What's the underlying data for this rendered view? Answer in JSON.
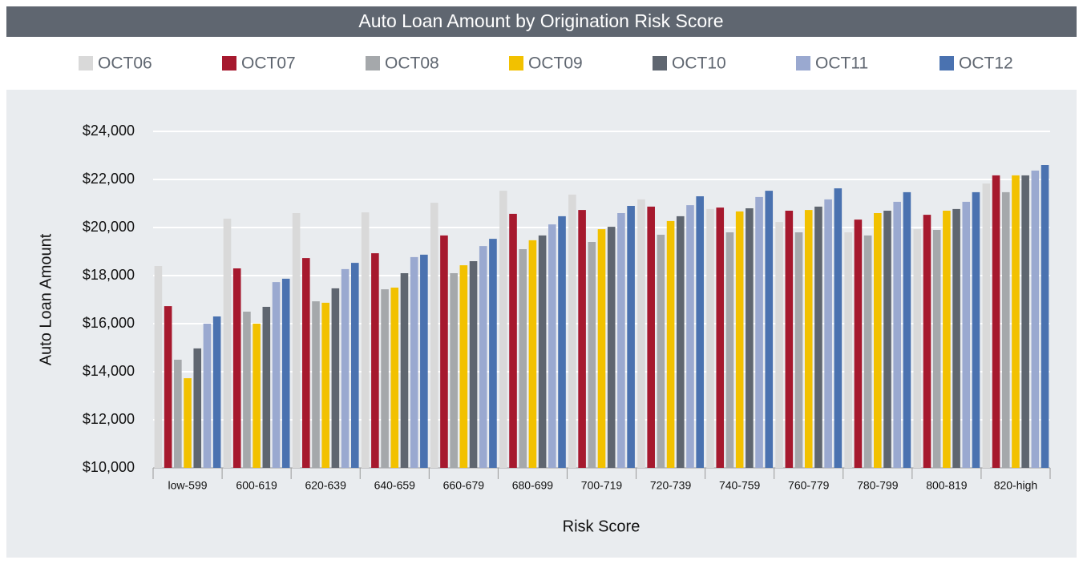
{
  "chart_data": {
    "type": "bar",
    "title": "Auto Loan Amount by Origination Risk Score",
    "x_label": "Risk Score",
    "y_label": "Auto Loan Amount",
    "categories": [
      "low-599",
      "600-619",
      "620-639",
      "640-659",
      "660-679",
      "680-699",
      "700-719",
      "720-739",
      "740-759",
      "760-779",
      "780-799",
      "800-819",
      "820-high"
    ],
    "series": [
      {
        "name": "OCT06",
        "color": "#d9d9d9",
        "values": [
          18400,
          20370,
          20600,
          20630,
          21030,
          21530,
          21370,
          21170,
          20770,
          20230,
          19800,
          19930,
          21830
        ]
      },
      {
        "name": "OCT07",
        "color": "#a6192e",
        "values": [
          16730,
          18300,
          18730,
          18930,
          19670,
          20570,
          20730,
          20870,
          20830,
          20700,
          20330,
          20530,
          22170
        ]
      },
      {
        "name": "OCT08",
        "color": "#a5a8ab",
        "values": [
          14500,
          16500,
          16930,
          17430,
          18100,
          19100,
          19400,
          19700,
          19800,
          19800,
          19670,
          19900,
          21470
        ]
      },
      {
        "name": "OCT09",
        "color": "#f2c100",
        "values": [
          13730,
          16000,
          16870,
          17500,
          18430,
          19470,
          19930,
          20270,
          20670,
          20730,
          20600,
          20700,
          22170
        ]
      },
      {
        "name": "OCT10",
        "color": "#5f6670",
        "values": [
          14970,
          16700,
          17470,
          18100,
          18600,
          19670,
          20030,
          20470,
          20800,
          20870,
          20700,
          20770,
          22170
        ]
      },
      {
        "name": "OCT11",
        "color": "#9aa9d0",
        "values": [
          16000,
          17730,
          18270,
          18770,
          19230,
          20130,
          20600,
          20930,
          21270,
          21170,
          21070,
          21070,
          22370
        ]
      },
      {
        "name": "OCT12",
        "color": "#4a72b0",
        "values": [
          16300,
          17870,
          18530,
          18870,
          19530,
          20470,
          20900,
          21300,
          21530,
          21630,
          21470,
          21470,
          22600
        ]
      }
    ],
    "ylim": [
      10000,
      24000
    ],
    "yticks": [
      {
        "value": 10000,
        "label": "$10,000"
      },
      {
        "value": 12000,
        "label": "$12,000"
      },
      {
        "value": 14000,
        "label": "$14,000"
      },
      {
        "value": 16000,
        "label": "$16,000"
      },
      {
        "value": 18000,
        "label": "$18,000"
      },
      {
        "value": 20000,
        "label": "$20,000"
      },
      {
        "value": 22000,
        "label": "$22,000"
      },
      {
        "value": 24000,
        "label": "$24,000"
      }
    ],
    "grid": true
  }
}
